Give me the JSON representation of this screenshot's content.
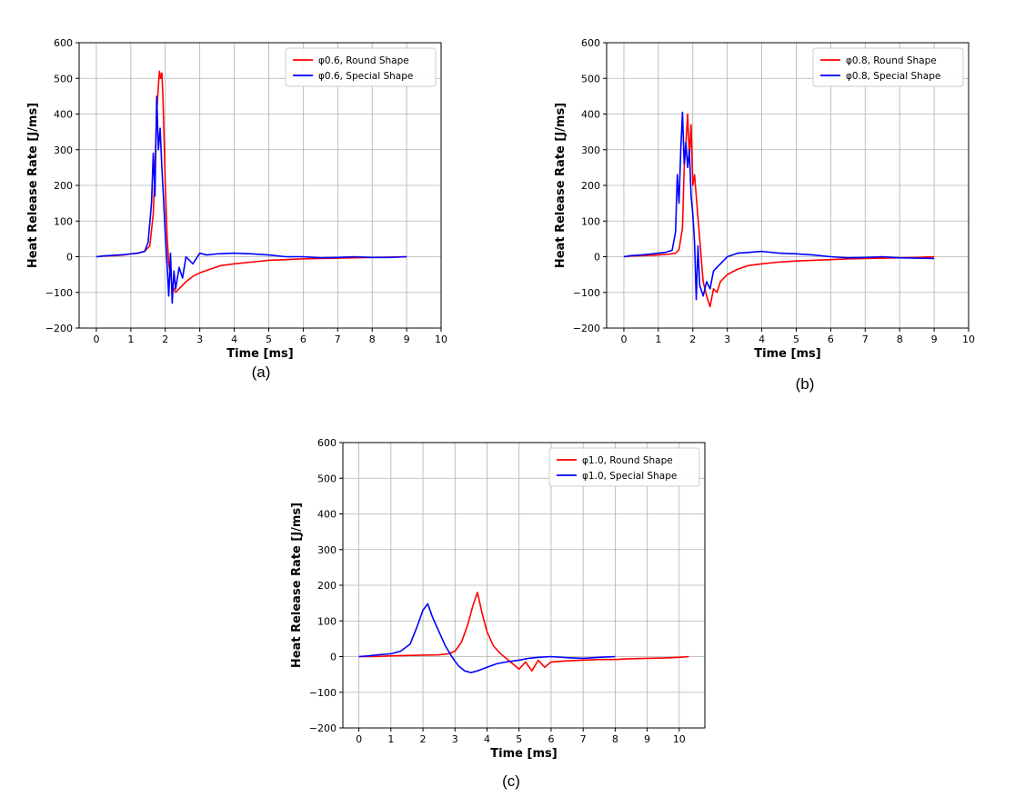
{
  "chart_data": [
    {
      "type": "line",
      "panel_label": "(a)",
      "xlabel": "Time [ms]",
      "ylabel": "Heat Release Rate [J/ms]",
      "xlim": [
        -0.5,
        10
      ],
      "ylim": [
        -200,
        600
      ],
      "xticks": [
        0,
        1,
        2,
        3,
        4,
        5,
        6,
        7,
        8,
        9,
        10
      ],
      "yticks": [
        -200,
        -100,
        0,
        100,
        200,
        300,
        400,
        500,
        600
      ],
      "grid": true,
      "legend_position": "top-right",
      "series": [
        {
          "name": "φ0.6, Round Shape",
          "color": "#ff0000",
          "x": [
            0,
            0.2,
            0.5,
            0.8,
            1.0,
            1.2,
            1.4,
            1.55,
            1.65,
            1.7,
            1.75,
            1.8,
            1.83,
            1.86,
            1.9,
            1.93,
            1.96,
            2.0,
            2.05,
            2.1,
            2.2,
            2.3,
            2.4,
            2.6,
            2.8,
            3.0,
            3.3,
            3.6,
            4.0,
            4.5,
            5.0,
            5.5,
            6.0,
            6.5,
            7.0,
            7.5,
            8.0,
            8.5,
            9.0
          ],
          "y": [
            0,
            2,
            3,
            5,
            8,
            10,
            15,
            30,
            120,
            250,
            400,
            480,
            520,
            500,
            515,
            450,
            350,
            200,
            60,
            -20,
            -80,
            -100,
            -90,
            -70,
            -55,
            -45,
            -35,
            -25,
            -20,
            -15,
            -10,
            -8,
            -6,
            -5,
            -4,
            -3,
            -2,
            -1,
            0
          ]
        },
        {
          "name": "φ0.6, Special Shape",
          "color": "#0000ff",
          "x": [
            0,
            0.2,
            0.5,
            0.8,
            1.0,
            1.2,
            1.4,
            1.5,
            1.6,
            1.65,
            1.7,
            1.75,
            1.8,
            1.85,
            1.9,
            1.95,
            2.0,
            2.05,
            2.1,
            2.15,
            2.2,
            2.25,
            2.3,
            2.4,
            2.5,
            2.6,
            2.8,
            3.0,
            3.2,
            3.5,
            4.0,
            4.5,
            5.0,
            5.5,
            6.0,
            6.5,
            7.0,
            7.5,
            8.0,
            8.5,
            9.0
          ],
          "y": [
            0,
            2,
            4,
            6,
            8,
            10,
            15,
            40,
            150,
            290,
            170,
            450,
            300,
            360,
            250,
            160,
            60,
            -20,
            -110,
            10,
            -130,
            -40,
            -90,
            -30,
            -60,
            0,
            -20,
            10,
            5,
            8,
            10,
            8,
            5,
            0,
            0,
            -3,
            -2,
            0,
            -2,
            -2,
            0
          ]
        }
      ]
    },
    {
      "type": "line",
      "panel_label": "(b)",
      "xlabel": "Time [ms]",
      "ylabel": "Heat Release Rate [J/ms]",
      "xlim": [
        -0.5,
        10
      ],
      "ylim": [
        -200,
        600
      ],
      "xticks": [
        0,
        1,
        2,
        3,
        4,
        5,
        6,
        7,
        8,
        9,
        10
      ],
      "yticks": [
        -200,
        -100,
        0,
        100,
        200,
        300,
        400,
        500,
        600
      ],
      "grid": true,
      "legend_position": "top-right",
      "series": [
        {
          "name": "φ0.8, Round Shape",
          "color": "#ff0000",
          "x": [
            0,
            0.2,
            0.5,
            0.8,
            1.0,
            1.3,
            1.5,
            1.6,
            1.7,
            1.75,
            1.8,
            1.85,
            1.9,
            1.95,
            2.0,
            2.05,
            2.1,
            2.2,
            2.3,
            2.4,
            2.5,
            2.6,
            2.7,
            2.8,
            3.0,
            3.3,
            3.6,
            4.0,
            4.5,
            5.0,
            5.5,
            6.0,
            6.5,
            7.0,
            7.5,
            8.0,
            8.5,
            9.0
          ],
          "y": [
            0,
            2,
            3,
            4,
            5,
            7,
            10,
            20,
            80,
            250,
            320,
            400,
            280,
            370,
            200,
            230,
            170,
            50,
            -70,
            -110,
            -140,
            -90,
            -100,
            -70,
            -50,
            -35,
            -25,
            -20,
            -15,
            -12,
            -10,
            -8,
            -6,
            -5,
            -4,
            -3,
            -2,
            0
          ]
        },
        {
          "name": "φ0.8, Special Shape",
          "color": "#0000ff",
          "x": [
            0,
            0.2,
            0.5,
            0.8,
            1.0,
            1.2,
            1.4,
            1.5,
            1.55,
            1.6,
            1.65,
            1.7,
            1.75,
            1.8,
            1.85,
            1.9,
            1.95,
            2.0,
            2.05,
            2.1,
            2.15,
            2.2,
            2.3,
            2.4,
            2.5,
            2.6,
            2.8,
            3.0,
            3.3,
            3.6,
            4.0,
            4.5,
            5.0,
            5.5,
            6.0,
            6.5,
            7.0,
            7.5,
            8.0,
            8.5,
            9.0
          ],
          "y": [
            0,
            3,
            5,
            8,
            10,
            12,
            18,
            70,
            230,
            150,
            300,
            405,
            260,
            320,
            250,
            300,
            170,
            120,
            40,
            -120,
            30,
            -80,
            -110,
            -70,
            -90,
            -40,
            -20,
            0,
            10,
            12,
            15,
            10,
            8,
            5,
            0,
            -3,
            -2,
            0,
            -3,
            -4,
            -5
          ]
        }
      ]
    },
    {
      "type": "line",
      "panel_label": "(c)",
      "xlabel": "Time [ms]",
      "ylabel": "Heat Release Rate [J/ms]",
      "xlim": [
        -0.5,
        10.8
      ],
      "ylim": [
        -200,
        600
      ],
      "xticks": [
        0,
        1,
        2,
        3,
        4,
        5,
        6,
        7,
        8,
        9,
        10
      ],
      "yticks": [
        -200,
        -100,
        0,
        100,
        200,
        300,
        400,
        500,
        600
      ],
      "grid": true,
      "legend_position": "top-right",
      "series": [
        {
          "name": "φ1.0, Round Shape",
          "color": "#ff0000",
          "x": [
            0,
            0.5,
            1.0,
            1.5,
            2.0,
            2.5,
            2.8,
            3.0,
            3.2,
            3.4,
            3.55,
            3.7,
            3.85,
            4.0,
            4.2,
            4.4,
            4.6,
            4.8,
            5.0,
            5.2,
            5.4,
            5.6,
            5.8,
            6.0,
            6.5,
            7.0,
            7.5,
            8.0,
            8.5,
            9.0,
            9.5,
            10.0,
            10.3
          ],
          "y": [
            0,
            0,
            2,
            3,
            4,
            5,
            8,
            15,
            40,
            90,
            140,
            180,
            120,
            70,
            30,
            10,
            -5,
            -20,
            -35,
            -15,
            -40,
            -10,
            -30,
            -15,
            -12,
            -10,
            -8,
            -8,
            -6,
            -5,
            -4,
            -2,
            0
          ]
        },
        {
          "name": "φ1.0, Special Shape",
          "color": "#0000ff",
          "x": [
            0,
            0.3,
            0.6,
            1.0,
            1.3,
            1.6,
            1.8,
            2.0,
            2.15,
            2.3,
            2.5,
            2.7,
            2.9,
            3.1,
            3.3,
            3.5,
            3.7,
            4.0,
            4.3,
            4.6,
            5.0,
            5.3,
            5.6,
            6.0,
            6.5,
            7.0,
            7.5,
            8.0
          ],
          "y": [
            0,
            2,
            5,
            8,
            15,
            35,
            80,
            130,
            148,
            110,
            70,
            30,
            0,
            -25,
            -40,
            -45,
            -40,
            -30,
            -20,
            -15,
            -10,
            -5,
            -2,
            0,
            -3,
            -5,
            -2,
            0
          ]
        }
      ]
    }
  ]
}
